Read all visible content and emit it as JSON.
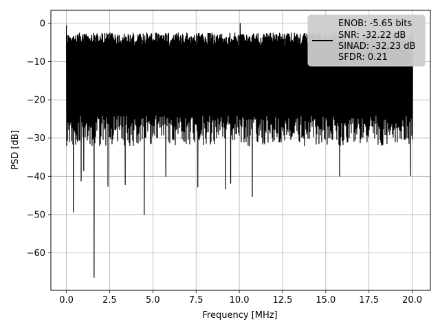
{
  "chart_data": {
    "type": "line",
    "title": "",
    "xlabel": "Frequency [MHz]",
    "ylabel": "PSD [dB]",
    "xlim": [
      -0.9,
      21.05
    ],
    "ylim": [
      -69.8,
      3.4
    ],
    "grid": true,
    "x_ticks": [
      0.0,
      2.5,
      5.0,
      7.5,
      10.0,
      12.5,
      15.0,
      17.5,
      20.0
    ],
    "x_tick_labels": [
      "0.0",
      "2.5",
      "5.0",
      "7.5",
      "10.0",
      "12.5",
      "15.0",
      "17.5",
      "20.0"
    ],
    "y_ticks": [
      0,
      -10,
      -20,
      -30,
      -40,
      -50,
      -60
    ],
    "y_tick_labels": [
      "0",
      "−10",
      "−20",
      "−30",
      "−40",
      "−50",
      "−60"
    ],
    "legend": {
      "placement": "top-right",
      "lines": [
        "ENOB: -5.65 bits",
        "SNR: -32.22 dB",
        "SINAD: -32.23 dB",
        "SFDR: 0.21"
      ]
    },
    "series": [
      {
        "color": "#000000",
        "x_range": [
          0.0,
          20.0
        ],
        "upper_envelope_db": [
          -2.5,
          -6
        ],
        "lower_envelope_db": [
          -24,
          -32
        ],
        "notable_points": [
          {
            "x": 0.0,
            "y": -0.5
          },
          {
            "x": 0.4,
            "y": -49.3
          },
          {
            "x": 0.85,
            "y": -41.2
          },
          {
            "x": 1.0,
            "y": -38.5
          },
          {
            "x": 1.6,
            "y": -66.4
          },
          {
            "x": 2.4,
            "y": -42.6
          },
          {
            "x": 3.4,
            "y": -42.2
          },
          {
            "x": 4.5,
            "y": -50.0
          },
          {
            "x": 5.75,
            "y": -40.0
          },
          {
            "x": 7.6,
            "y": -42.8
          },
          {
            "x": 9.2,
            "y": -43.3
          },
          {
            "x": 9.5,
            "y": -41.8
          },
          {
            "x": 10.05,
            "y": 0.0
          },
          {
            "x": 10.75,
            "y": -45.3
          },
          {
            "x": 15.8,
            "y": -40.0
          },
          {
            "x": 19.9,
            "y": -39.8
          }
        ]
      }
    ]
  }
}
